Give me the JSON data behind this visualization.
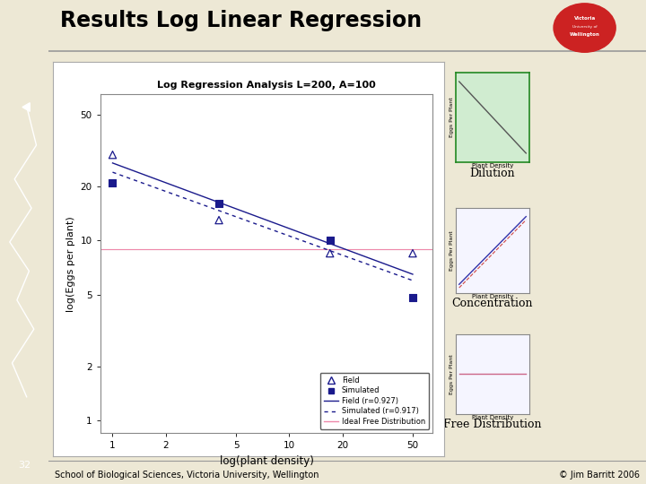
{
  "title": "Results Log Linear Regression",
  "bg_color": "#ede8d5",
  "left_bar_color": "#1e6b1e",
  "slide_number": "32",
  "footer_left": "School of Biological Sciences, Victoria University, Wellington",
  "footer_right": "© Jim Barritt 2006",
  "main_plot": {
    "title": "Log Regression Analysis L=200, A=100",
    "xlabel": "log(plant density)",
    "ylabel": "log(Eggs per plant)",
    "x_ticks": [
      1,
      2,
      5,
      10,
      20,
      50
    ],
    "y_ticks": [
      1,
      2,
      5,
      10,
      20,
      50
    ],
    "field_points_x": [
      1,
      4,
      17,
      50
    ],
    "field_points_y": [
      30,
      13,
      8.5,
      8.5
    ],
    "sim_points_x": [
      1,
      4,
      17,
      50
    ],
    "sim_points_y": [
      21,
      16,
      10,
      4.8
    ],
    "field_line_x": [
      1,
      50
    ],
    "field_line_y": [
      27,
      6.5
    ],
    "sim_line_x": [
      1,
      50
    ],
    "sim_line_y": [
      24,
      6.0
    ],
    "ideal_line_y": 9.0,
    "horiz_line_color": "#cccccc",
    "field_line_color": "#1a1a8c",
    "sim_line_color": "#1a1a8c",
    "ideal_line_color": "#ee88aa",
    "legend_labels": [
      "Field",
      "Simulated",
      "Field (r=0.927)",
      "Simulated (r=0.917)",
      "Ideal Free Distribution"
    ]
  },
  "inset1": {
    "label": "Dilution",
    "bg_color": "#d0ecd0",
    "line_color": "#555555",
    "border_color": "#228822"
  },
  "inset2": {
    "label": "Concentration",
    "bg_color": "#f5f5ff",
    "line_color_blue": "#3333aa",
    "line_color_red": "#cc4444",
    "border_color": "#888888"
  },
  "inset3": {
    "label": "Free Distribution",
    "bg_color": "#f5f5ff",
    "line_color": "#cc6688",
    "border_color": "#888888"
  }
}
